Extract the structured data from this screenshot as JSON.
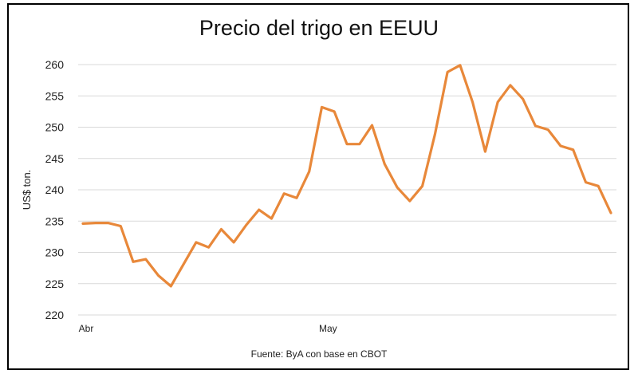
{
  "chart_data": {
    "type": "line",
    "title": "Precio del trigo en EEUU",
    "ylabel": "US$ ton.",
    "xlabel": "",
    "ylim": [
      220,
      260
    ],
    "y_ticks": [
      "260",
      "255",
      "250",
      "245",
      "240",
      "235",
      "230",
      "225",
      "220"
    ],
    "x_tick_labels": [
      "Abr",
      "May"
    ],
    "grid": "horizontal",
    "line_color": "#E8883A",
    "source": "Fuente: ByA con base en CBOT",
    "series": [
      {
        "values": [
          234.6,
          234.7,
          234.7,
          234.2,
          228.5,
          228.9,
          226.3,
          224.6,
          228.1,
          231.6,
          230.8,
          233.7,
          231.6,
          234.4,
          236.8,
          235.4,
          239.4,
          238.7,
          242.9,
          253.2,
          252.5,
          247.3,
          247.3,
          250.3,
          244.1,
          240.4,
          238.2,
          240.6,
          248.8,
          258.8,
          259.9,
          254.0,
          246.1,
          254.0,
          256.7,
          254.5,
          250.2,
          249.6,
          247.0,
          246.4,
          241.2,
          240.6,
          236.3
        ]
      }
    ]
  }
}
